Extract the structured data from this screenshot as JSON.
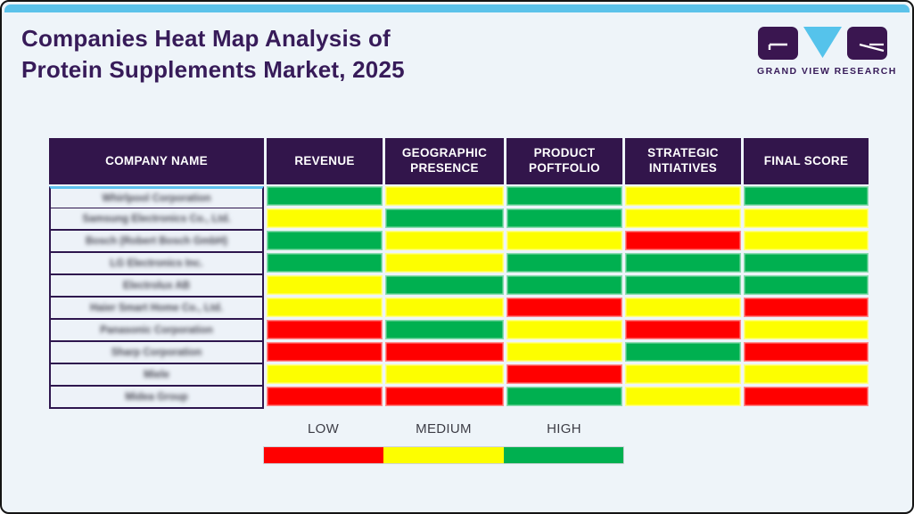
{
  "page": {
    "title": "Companies Heat Map Analysis of\nProtein Supplements Market, 2025",
    "brand": "GRAND VIEW RESEARCH"
  },
  "chart_data": {
    "type": "heatmap",
    "title": "Companies Heat Map Analysis of Protein Supplements Market, 2025",
    "row_header": "COMPANY NAME",
    "columns": [
      "REVENUE",
      "GEOGRAPHIC\nPRESENCE",
      "PRODUCT\nPOFTFOLIO",
      "STRATEGIC\nINTIATIVES",
      "FINAL SCORE"
    ],
    "rows": [
      {
        "company": "Whirlpool Corporation",
        "values": [
          "HIGH",
          "MEDIUM",
          "HIGH",
          "MEDIUM",
          "HIGH"
        ]
      },
      {
        "company": "Samsung Electronics Co., Ltd.",
        "values": [
          "MEDIUM",
          "HIGH",
          "HIGH",
          "MEDIUM",
          "MEDIUM"
        ]
      },
      {
        "company": "Bosch (Robert Bosch GmbH)",
        "values": [
          "HIGH",
          "MEDIUM",
          "MEDIUM",
          "LOW",
          "MEDIUM"
        ]
      },
      {
        "company": "LG Electronics Inc.",
        "values": [
          "HIGH",
          "MEDIUM",
          "HIGH",
          "HIGH",
          "HIGH"
        ]
      },
      {
        "company": "Electrolux AB",
        "values": [
          "MEDIUM",
          "HIGH",
          "HIGH",
          "HIGH",
          "HIGH"
        ]
      },
      {
        "company": "Haier Smart Home Co., Ltd.",
        "values": [
          "MEDIUM",
          "MEDIUM",
          "LOW",
          "MEDIUM",
          "LOW"
        ]
      },
      {
        "company": "Panasonic Corporation",
        "values": [
          "LOW",
          "HIGH",
          "MEDIUM",
          "LOW",
          "MEDIUM"
        ]
      },
      {
        "company": "Sharp Corporation",
        "values": [
          "LOW",
          "LOW",
          "MEDIUM",
          "HIGH",
          "LOW"
        ]
      },
      {
        "company": "Miele",
        "values": [
          "MEDIUM",
          "MEDIUM",
          "LOW",
          "MEDIUM",
          "MEDIUM"
        ]
      },
      {
        "company": "Midea Group",
        "values": [
          "LOW",
          "LOW",
          "HIGH",
          "MEDIUM",
          "LOW"
        ]
      }
    ],
    "scale": {
      "LOW": "#ff0000",
      "MEDIUM": "#fdfe00",
      "HIGH": "#00b050"
    },
    "legend_items": [
      {
        "label": "LOW",
        "level": "LOW"
      },
      {
        "label": "MEDIUM",
        "level": "MEDIUM"
      },
      {
        "label": "HIGH",
        "level": "HIGH"
      }
    ],
    "legend_position": "bottom"
  },
  "colors": {
    "accent_blue": "#5bc2ea",
    "header_bg": "#32154b",
    "title_text": "#371b59",
    "card_bg": "#eef4f9"
  }
}
